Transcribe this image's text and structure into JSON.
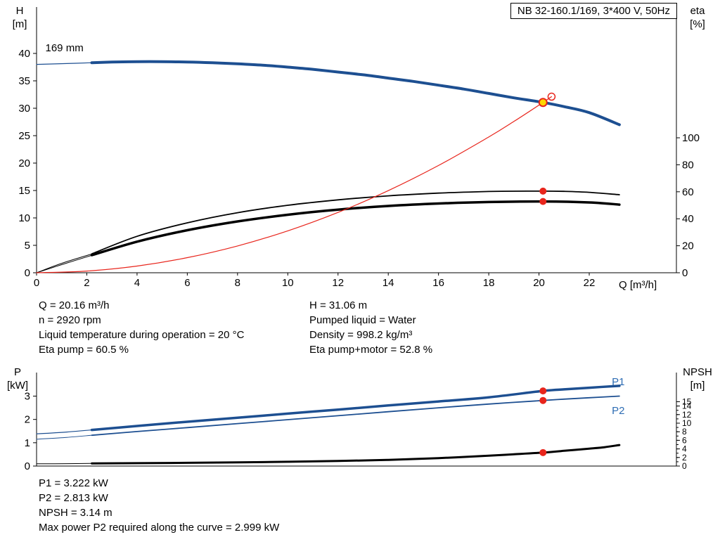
{
  "colors": {
    "red": "#e8251c",
    "yellow": "#ffd700",
    "blue": "#1d4f91",
    "label_blue": "#2e6db4",
    "black": "#000000"
  },
  "duty_info": {
    "left": [
      "Q = 20.16 m³/h",
      "n = 2920 rpm",
      "Liquid temperature during operation = 20 °C",
      "Eta pump = 60.5 %"
    ],
    "right": [
      "H = 31.06 m",
      "Pumped liquid = Water",
      "Density = 998.2 kg/m³",
      "Eta pump+motor = 52.8 %"
    ]
  },
  "result_info": [
    "P1 = 3.222 kW",
    "P2 = 2.813 kW",
    "NPSH = 3.14 m",
    "Max power P2 required along the curve = 2.999 kW"
  ],
  "chart_data": [
    {
      "type": "line",
      "title": "NB 32-160.1/169, 3*400 V, 50Hz",
      "x_axis": {
        "label": "Q [m³/h]",
        "min": 0,
        "max": 25.47,
        "ticks": [
          0,
          2,
          4,
          6,
          8,
          10,
          12,
          14,
          16,
          18,
          20,
          22
        ]
      },
      "y_left": {
        "symbol": "H",
        "unit": "[m]",
        "min": 0,
        "max": 48.46,
        "ticks": [
          0,
          5,
          10,
          15,
          20,
          25,
          30,
          35,
          40
        ]
      },
      "y_right": {
        "symbol": "eta",
        "unit": "[%]",
        "min": 0,
        "max": 196.9,
        "ticks": [
          0,
          20,
          40,
          60,
          80,
          100
        ]
      },
      "series": [
        {
          "name": "head-curve-lead-in",
          "axis": "left",
          "color": "#1d4f91",
          "width": 1.2,
          "points": [
            [
              0,
              38.0
            ],
            [
              1.2,
              38.15
            ],
            [
              2.3,
              38.32
            ]
          ]
        },
        {
          "name": "head-curve-169mm",
          "axis": "left",
          "color": "#1d4f91",
          "width": 4,
          "points": [
            [
              2.2,
              38.3
            ],
            [
              3,
              38.42
            ],
            [
              4,
              38.5
            ],
            [
              5,
              38.5
            ],
            [
              6,
              38.44
            ],
            [
              7,
              38.3
            ],
            [
              8,
              38.1
            ],
            [
              9,
              37.85
            ],
            [
              10,
              37.5
            ],
            [
              11,
              37.1
            ],
            [
              12,
              36.6
            ],
            [
              13,
              36.1
            ],
            [
              14,
              35.5
            ],
            [
              15,
              34.9
            ],
            [
              16,
              34.2
            ],
            [
              17,
              33.5
            ],
            [
              18,
              32.7
            ],
            [
              19,
              31.9
            ],
            [
              20.16,
              31.06
            ],
            [
              21,
              30.3
            ],
            [
              22,
              29.2
            ],
            [
              23.2,
              27.0
            ]
          ]
        },
        {
          "name": "eta-pump-lead-in",
          "axis": "right",
          "color": "#000000",
          "width": 1,
          "points": [
            [
              0,
              0
            ],
            [
              1,
              7
            ],
            [
              2.3,
              14.5
            ]
          ]
        },
        {
          "name": "eta-pump-curve",
          "axis": "right",
          "color": "#000000",
          "width": 1.8,
          "points": [
            [
              2.2,
              14
            ],
            [
              4,
              27
            ],
            [
              6,
              37
            ],
            [
              8,
              44.5
            ],
            [
              10,
              50
            ],
            [
              12,
              54
            ],
            [
              14,
              57
            ],
            [
              16,
              59
            ],
            [
              18,
              60.2
            ],
            [
              19,
              60.45
            ],
            [
              20.16,
              60.5
            ],
            [
              21,
              60.3
            ],
            [
              22,
              59.6
            ],
            [
              23.2,
              57.8
            ]
          ]
        },
        {
          "name": "eta-pump-motor-lead-in",
          "axis": "right",
          "color": "#000000",
          "width": 1,
          "points": [
            [
              0,
              0
            ],
            [
              1,
              6
            ],
            [
              2.3,
              13.5
            ]
          ]
        },
        {
          "name": "eta-pump-motor-curve",
          "axis": "right",
          "color": "#000000",
          "width": 3.5,
          "points": [
            [
              2.2,
              13
            ],
            [
              4,
              23
            ],
            [
              6,
              31.5
            ],
            [
              8,
              38
            ],
            [
              10,
              43
            ],
            [
              12,
              46.8
            ],
            [
              14,
              49.5
            ],
            [
              16,
              51.3
            ],
            [
              18,
              52.4
            ],
            [
              20.16,
              52.8
            ],
            [
              22,
              52.1
            ],
            [
              23.2,
              50.5
            ]
          ]
        },
        {
          "name": "system-curve",
          "axis": "left",
          "color": "#e8251c",
          "width": 1.2,
          "points": [
            [
              0,
              0
            ],
            [
              2,
              0.31
            ],
            [
              4,
              1.22
            ],
            [
              6,
              2.75
            ],
            [
              8,
              4.89
            ],
            [
              10,
              7.64
            ],
            [
              12,
              11.0
            ],
            [
              14,
              14.98
            ],
            [
              16,
              19.56
            ],
            [
              18,
              24.76
            ],
            [
              19,
              27.59
            ],
            [
              20.16,
              31.06
            ],
            [
              20.5,
              32.11
            ]
          ]
        }
      ],
      "annotations": [
        {
          "text": "169 mm",
          "x": 0.35,
          "y": 41.0,
          "axis": "left",
          "color": "#000000"
        }
      ],
      "markers": [
        {
          "name": "requested-duty-point",
          "style": "open",
          "x": 20.5,
          "y": 32.11,
          "axis": "left"
        },
        {
          "name": "duty-point",
          "style": "duty",
          "x": 20.16,
          "y": 31.06,
          "axis": "left"
        },
        {
          "name": "eta-pump-duty-point",
          "style": "dot",
          "x": 20.16,
          "y": 60.5,
          "axis": "right"
        },
        {
          "name": "eta-pump-motor-duty-point",
          "style": "dot",
          "x": 20.16,
          "y": 52.8,
          "axis": "right"
        }
      ]
    },
    {
      "type": "line",
      "title": "",
      "x_axis": {
        "label": "",
        "min": 0,
        "max": 25.47,
        "ticks": []
      },
      "y_left": {
        "symbol": "P",
        "unit": "[kW]",
        "min": 0,
        "max": 4.01,
        "ticks": [
          0,
          1,
          2,
          3
        ]
      },
      "y_right": {
        "symbol": "NPSH",
        "unit": "[m]",
        "min": 0,
        "max": 21.8,
        "ticks": [
          0,
          2,
          4,
          6,
          8,
          10,
          12,
          14,
          15
        ],
        "minor_step": 1,
        "minor_max": 15
      },
      "series": [
        {
          "name": "p1-lead-in",
          "axis": "left",
          "color": "#1d4f91",
          "width": 1.2,
          "points": [
            [
              0,
              1.38
            ],
            [
              1.2,
              1.46
            ],
            [
              2.3,
              1.56
            ]
          ]
        },
        {
          "name": "p1-curve",
          "axis": "left",
          "color": "#1d4f91",
          "width": 3.5,
          "points": [
            [
              2.2,
              1.55
            ],
            [
              4,
              1.72
            ],
            [
              6,
              1.9
            ],
            [
              8,
              2.07
            ],
            [
              10,
              2.25
            ],
            [
              12,
              2.42
            ],
            [
              14,
              2.6
            ],
            [
              16,
              2.77
            ],
            [
              18,
              2.95
            ],
            [
              20.16,
              3.222
            ],
            [
              21,
              3.29
            ],
            [
              22,
              3.36
            ],
            [
              23.2,
              3.44
            ]
          ]
        },
        {
          "name": "p2-lead-in",
          "axis": "left",
          "color": "#1d4f91",
          "width": 1,
          "points": [
            [
              0,
              1.15
            ],
            [
              1.2,
              1.23
            ],
            [
              2.3,
              1.33
            ]
          ]
        },
        {
          "name": "p2-curve",
          "axis": "left",
          "color": "#1d4f91",
          "width": 1.8,
          "points": [
            [
              2.2,
              1.32
            ],
            [
              4,
              1.48
            ],
            [
              6,
              1.65
            ],
            [
              8,
              1.82
            ],
            [
              10,
              1.99
            ],
            [
              12,
              2.16
            ],
            [
              14,
              2.33
            ],
            [
              16,
              2.5
            ],
            [
              18,
              2.66
            ],
            [
              20.16,
              2.813
            ],
            [
              21,
              2.87
            ],
            [
              22,
              2.93
            ],
            [
              23.2,
              3.0
            ]
          ]
        },
        {
          "name": "npsh-lead-in",
          "axis": "right",
          "color": "#000000",
          "width": 1,
          "points": [
            [
              0,
              0.52
            ],
            [
              1.2,
              0.56
            ],
            [
              2.3,
              0.62
            ]
          ]
        },
        {
          "name": "npsh-curve",
          "axis": "right",
          "color": "#000000",
          "width": 3,
          "points": [
            [
              2.2,
              0.62
            ],
            [
              4,
              0.68
            ],
            [
              6,
              0.75
            ],
            [
              8,
              0.85
            ],
            [
              10,
              1.0
            ],
            [
              12,
              1.18
            ],
            [
              14,
              1.45
            ],
            [
              16,
              1.85
            ],
            [
              18,
              2.42
            ],
            [
              19,
              2.75
            ],
            [
              20.16,
              3.14
            ],
            [
              21,
              3.55
            ],
            [
              22,
              4.05
            ],
            [
              22.6,
              4.4
            ],
            [
              23.2,
              4.9
            ]
          ]
        }
      ],
      "annotations": [
        {
          "text": "P1",
          "x": 22.9,
          "y": 3.62,
          "axis": "left",
          "color": "#2e6db4"
        },
        {
          "text": "P2",
          "x": 22.9,
          "y": 2.38,
          "axis": "left",
          "color": "#2e6db4"
        }
      ],
      "markers": [
        {
          "name": "p1-duty-point",
          "style": "dot",
          "x": 20.16,
          "y": 3.222,
          "axis": "left"
        },
        {
          "name": "p2-duty-point",
          "style": "dot",
          "x": 20.16,
          "y": 2.813,
          "axis": "left"
        },
        {
          "name": "npsh-duty-point",
          "style": "dot",
          "x": 20.16,
          "y": 3.14,
          "axis": "right"
        }
      ]
    }
  ]
}
